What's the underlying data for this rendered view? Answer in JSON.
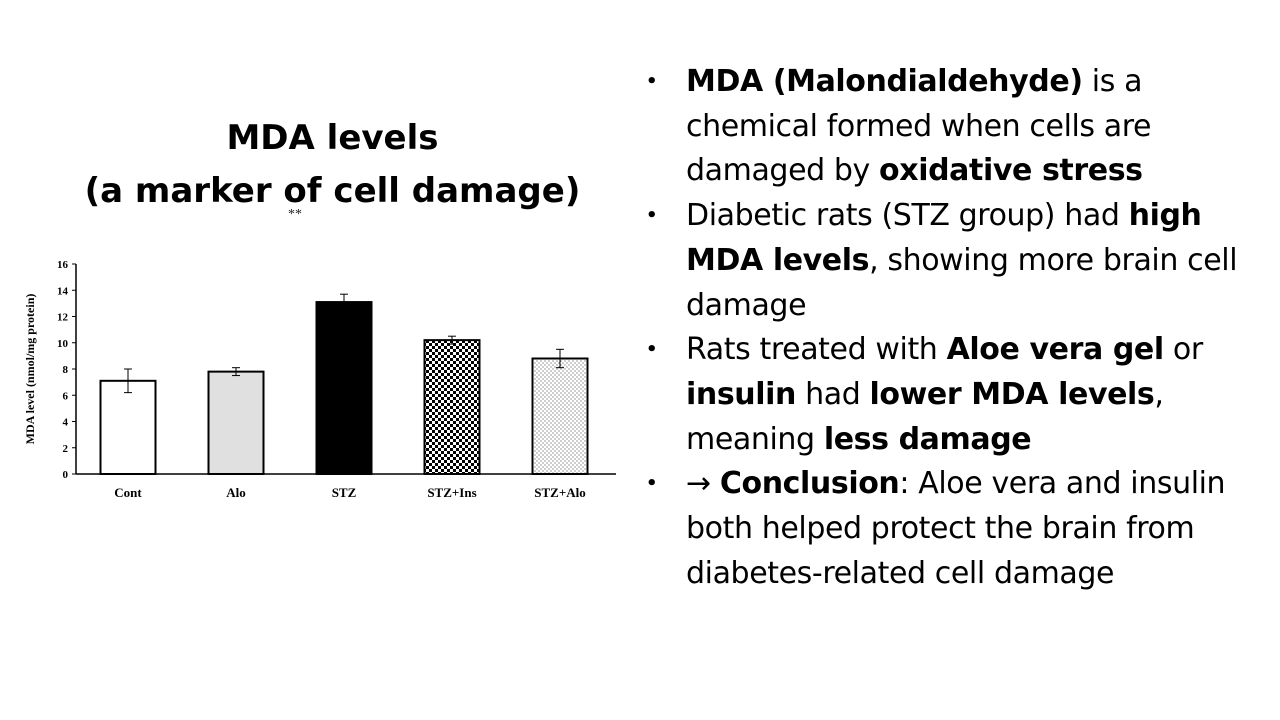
{
  "slide": {
    "title_line1": "MDA levels",
    "title_line2": "(a marker of cell damage)",
    "significance_mark": "**"
  },
  "chart_data": {
    "type": "bar",
    "ylabel": "MDA level (nmol/mg protein)",
    "xlabel": "",
    "ylim": [
      0,
      16
    ],
    "yticks": [
      0,
      2,
      4,
      6,
      8,
      10,
      12,
      14,
      16
    ],
    "categories": [
      "Cont",
      "Alo",
      "STZ",
      "STZ+Ins",
      "STZ+Alo"
    ],
    "values": [
      7.1,
      7.8,
      13.1,
      10.2,
      8.8
    ],
    "errors": [
      0.9,
      0.3,
      0.6,
      0.3,
      0.7
    ],
    "fills": [
      "white",
      "lightgray",
      "black",
      "checker",
      "dots"
    ],
    "grid": false,
    "legend": "none"
  },
  "bullets": [
    {
      "marker": "•",
      "parts": [
        {
          "text": "MDA (Malondialdehyde)",
          "bold": true
        },
        {
          "text": " is a chemical formed when cells are damaged by ",
          "bold": false
        },
        {
          "text": "oxidative stress",
          "bold": true
        }
      ]
    },
    {
      "marker": "•",
      "parts": [
        {
          "text": "Diabetic rats (STZ group) had ",
          "bold": false
        },
        {
          "text": "high MDA levels",
          "bold": true
        },
        {
          "text": ", showing more brain cell damage",
          "bold": false
        }
      ]
    },
    {
      "marker": "•",
      "parts": [
        {
          "text": "Rats treated with ",
          "bold": false
        },
        {
          "text": "Aloe vera gel",
          "bold": true
        },
        {
          "text": " or ",
          "bold": false
        },
        {
          "text": "insulin",
          "bold": true
        },
        {
          "text": " had ",
          "bold": false
        },
        {
          "text": "lower MDA levels",
          "bold": true
        },
        {
          "text": ", meaning ",
          "bold": false
        },
        {
          "text": "less damage",
          "bold": true
        }
      ]
    },
    {
      "marker": "•",
      "parts": [
        {
          "text": "→ ",
          "bold": false
        },
        {
          "text": "Conclusion",
          "bold": true
        },
        {
          "text": ": Aloe vera and insulin both helped protect the brain from diabetes-related cell damage",
          "bold": false
        }
      ]
    }
  ]
}
